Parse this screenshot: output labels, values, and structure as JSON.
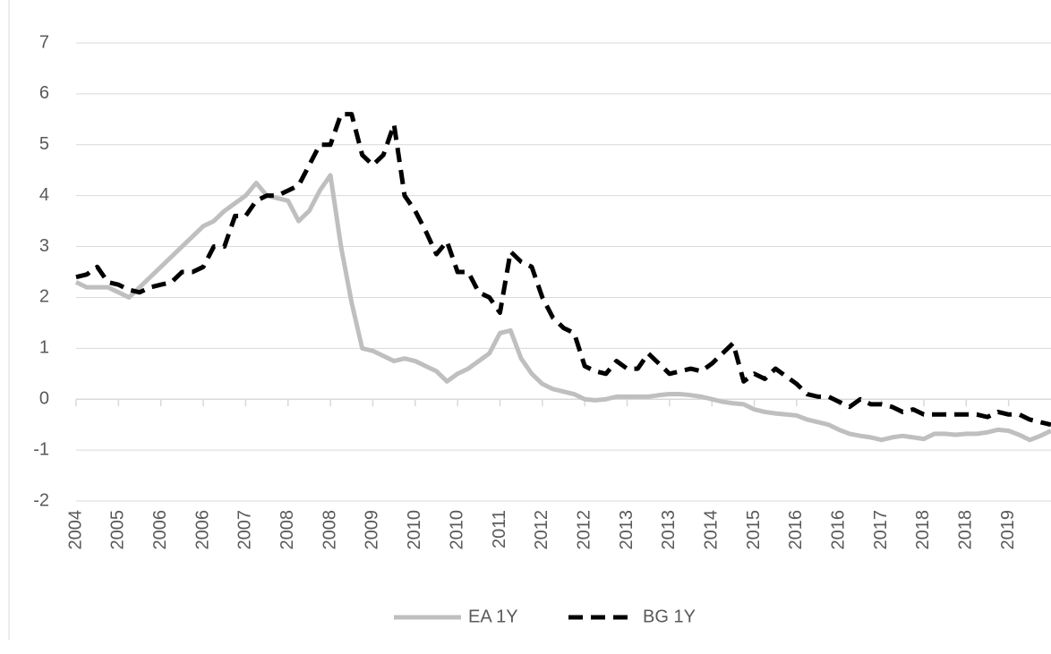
{
  "chart_data": {
    "type": "line",
    "categories": [
      "2004",
      null,
      null,
      null,
      "2005",
      null,
      null,
      null,
      "2006",
      null,
      null,
      null,
      "2006",
      null,
      null,
      null,
      "2007",
      null,
      null,
      null,
      "2008",
      null,
      null,
      null,
      "2008",
      null,
      null,
      null,
      "2009",
      null,
      null,
      null,
      "2010",
      null,
      null,
      null,
      "2010",
      null,
      null,
      null,
      "2011",
      null,
      null,
      null,
      "2012",
      null,
      null,
      null,
      "2012",
      null,
      null,
      null,
      "2013",
      null,
      null,
      null,
      "2013",
      null,
      null,
      null,
      "2014",
      null,
      null,
      null,
      "2015",
      null,
      null,
      null,
      "2016",
      null,
      null,
      null,
      "2016",
      null,
      null,
      null,
      "2017",
      null,
      null,
      null,
      "2018",
      null,
      null,
      null,
      "2018",
      null,
      null,
      null,
      "2019",
      null,
      null,
      null,
      null
    ],
    "series": [
      {
        "name": "EA 1Y",
        "color": "#bfbfbf",
        "dashed": false,
        "values": [
          2.3,
          2.2,
          2.2,
          2.2,
          2.1,
          2.0,
          2.2,
          2.4,
          2.6,
          2.8,
          3.0,
          3.2,
          3.4,
          3.5,
          3.7,
          3.85,
          4.0,
          4.25,
          4.0,
          3.95,
          3.9,
          3.5,
          3.7,
          4.1,
          4.4,
          3.0,
          1.9,
          1.0,
          0.95,
          0.85,
          0.75,
          0.8,
          0.75,
          0.65,
          0.55,
          0.35,
          0.5,
          0.6,
          0.75,
          0.9,
          1.3,
          1.35,
          0.8,
          0.5,
          0.3,
          0.2,
          0.15,
          0.1,
          0.0,
          -0.02,
          0.0,
          0.05,
          0.05,
          0.05,
          0.05,
          0.08,
          0.1,
          0.1,
          0.08,
          0.05,
          0.0,
          -0.05,
          -0.08,
          -0.1,
          -0.2,
          -0.25,
          -0.28,
          -0.3,
          -0.32,
          -0.4,
          -0.45,
          -0.5,
          -0.6,
          -0.68,
          -0.72,
          -0.75,
          -0.8,
          -0.75,
          -0.72,
          -0.75,
          -0.78,
          -0.68,
          -0.68,
          -0.7,
          -0.68,
          -0.68,
          -0.65,
          -0.6,
          -0.62,
          -0.7,
          -0.8,
          -0.72,
          -0.62
        ]
      },
      {
        "name": "BG 1Y",
        "color": "#000000",
        "dashed": true,
        "values": [
          2.4,
          2.45,
          2.6,
          2.3,
          2.25,
          2.15,
          2.1,
          2.2,
          2.25,
          2.3,
          2.5,
          2.5,
          2.6,
          3.0,
          3.0,
          3.6,
          3.6,
          3.9,
          4.0,
          4.0,
          4.1,
          4.2,
          4.6,
          5.0,
          5.0,
          5.6,
          5.6,
          4.8,
          4.6,
          4.8,
          5.4,
          4.0,
          3.7,
          3.3,
          2.85,
          3.1,
          2.5,
          2.5,
          2.1,
          2.0,
          1.7,
          2.9,
          2.7,
          2.6,
          2.0,
          1.6,
          1.4,
          1.3,
          0.65,
          0.55,
          0.5,
          0.75,
          0.6,
          0.6,
          0.9,
          0.7,
          0.5,
          0.55,
          0.6,
          0.55,
          0.7,
          0.9,
          1.1,
          0.35,
          0.5,
          0.4,
          0.6,
          0.45,
          0.3,
          0.1,
          0.05,
          0.05,
          -0.05,
          -0.15,
          0.0,
          -0.1,
          -0.1,
          -0.15,
          -0.25,
          -0.2,
          -0.3,
          -0.3,
          -0.3,
          -0.3,
          -0.3,
          -0.3,
          -0.35,
          -0.25,
          -0.3,
          -0.3,
          -0.4,
          -0.45,
          -0.5
        ]
      }
    ],
    "ylim": [
      -2,
      7
    ],
    "yticks": [
      -2,
      -1,
      0,
      1,
      2,
      3,
      4,
      5,
      6,
      7
    ],
    "grid": true,
    "legend": "bottom"
  }
}
